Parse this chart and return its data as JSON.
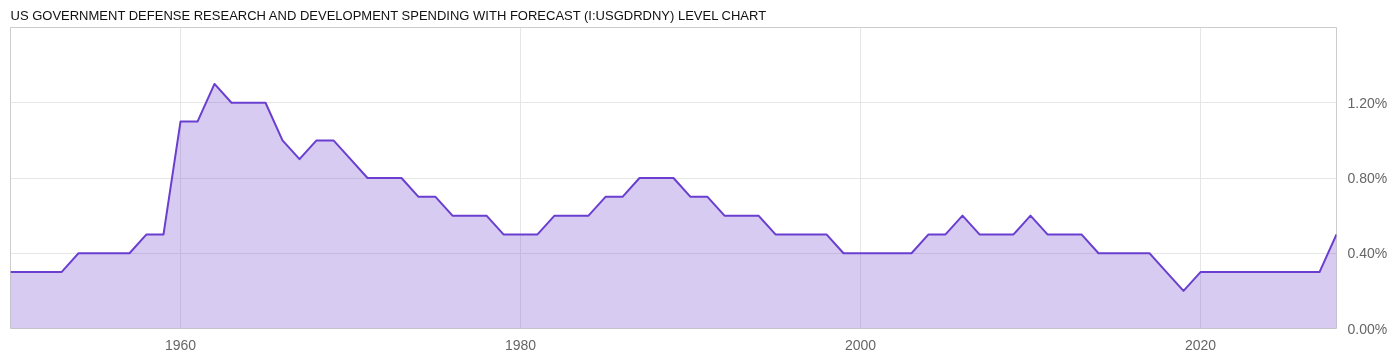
{
  "chart_data": {
    "type": "area",
    "title": "US GOVERNMENT DEFENSE RESEARCH AND DEVELOPMENT SPENDING WITH FORECAST (I:USGDRDNY) LEVEL CHART",
    "x": [
      1950,
      1951,
      1952,
      1953,
      1954,
      1955,
      1956,
      1957,
      1958,
      1959,
      1960,
      1961,
      1962,
      1963,
      1964,
      1965,
      1966,
      1967,
      1968,
      1969,
      1970,
      1971,
      1972,
      1973,
      1974,
      1975,
      1976,
      1977,
      1978,
      1979,
      1980,
      1981,
      1982,
      1983,
      1984,
      1985,
      1986,
      1987,
      1988,
      1989,
      1990,
      1991,
      1992,
      1993,
      1994,
      1995,
      1996,
      1997,
      1998,
      1999,
      2000,
      2001,
      2002,
      2003,
      2004,
      2005,
      2006,
      2007,
      2008,
      2009,
      2010,
      2011,
      2012,
      2013,
      2014,
      2015,
      2016,
      2017,
      2018,
      2019,
      2020,
      2021,
      2022,
      2023,
      2024,
      2025,
      2026,
      2027,
      2028
    ],
    "series": [
      {
        "color": "#6a3fd0",
        "values": [
          0.3,
          0.3,
          0.3,
          0.3,
          0.4,
          0.4,
          0.4,
          0.4,
          0.5,
          0.5,
          1.1,
          1.1,
          1.3,
          1.2,
          1.2,
          1.2,
          1.0,
          0.9,
          1.0,
          1.0,
          0.9,
          0.8,
          0.8,
          0.8,
          0.7,
          0.7,
          0.6,
          0.6,
          0.6,
          0.5,
          0.5,
          0.5,
          0.6,
          0.6,
          0.6,
          0.7,
          0.7,
          0.8,
          0.8,
          0.8,
          0.7,
          0.7,
          0.6,
          0.6,
          0.6,
          0.5,
          0.5,
          0.5,
          0.5,
          0.4,
          0.4,
          0.4,
          0.4,
          0.4,
          0.5,
          0.5,
          0.6,
          0.5,
          0.5,
          0.5,
          0.6,
          0.5,
          0.5,
          0.5,
          0.4,
          0.4,
          0.4,
          0.4,
          0.3,
          0.2,
          0.3,
          0.3,
          0.3,
          0.3,
          0.3,
          0.3,
          0.3,
          0.3,
          0.5
        ]
      }
    ],
    "xlim": [
      1950,
      2028
    ],
    "xticks": [
      1960,
      1980,
      2000,
      2020
    ],
    "ylim": [
      0,
      1.6
    ],
    "yticks": [
      {
        "value": 0,
        "label": "0.00%"
      },
      {
        "value": 0.4,
        "label": "0.40%"
      },
      {
        "value": 0.8,
        "label": "0.80%"
      },
      {
        "value": 1.2,
        "label": "1.20%"
      }
    ],
    "grid": true
  }
}
